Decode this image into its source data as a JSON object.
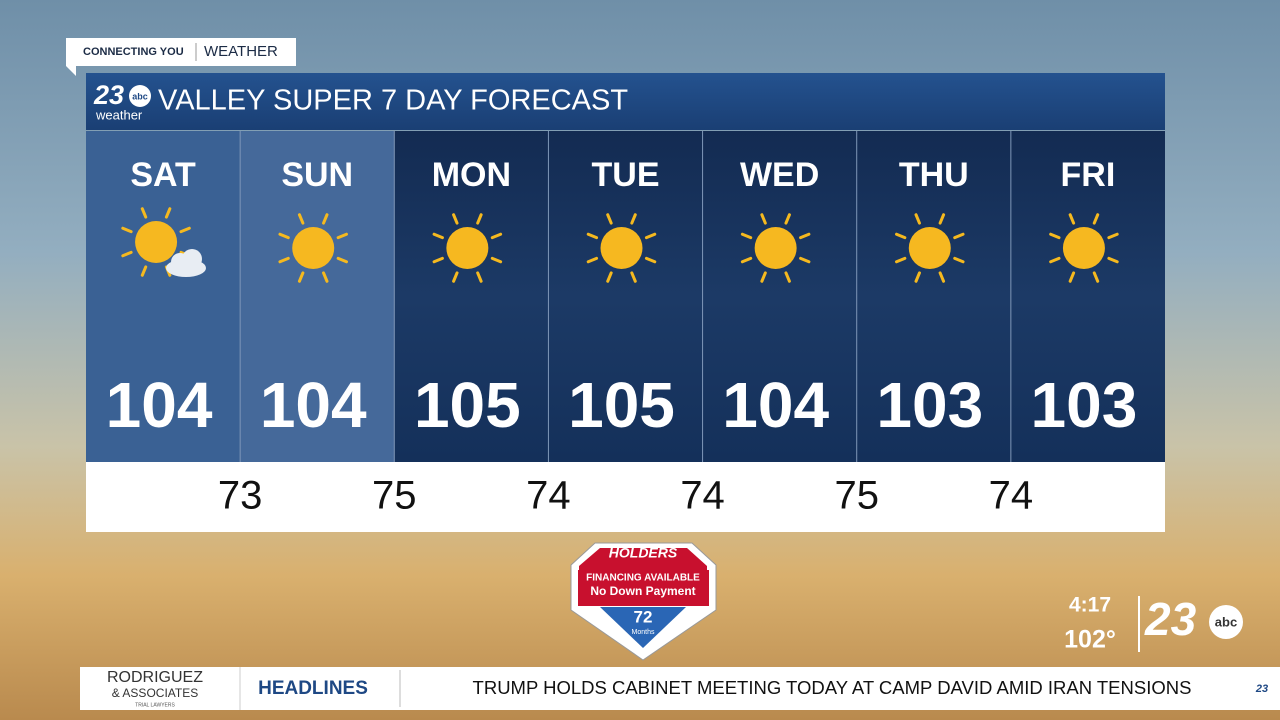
{
  "tag": {
    "brand": "CONNECTING YOU",
    "section": "WEATHER"
  },
  "header": {
    "logo_number": "23",
    "logo_network": "abc",
    "logo_sub": "weather",
    "title": "VALLEY SUPER 7 DAY FORECAST"
  },
  "days": [
    {
      "name": "SAT",
      "high": 104
    },
    {
      "name": "SUN",
      "high": 104
    },
    {
      "name": "MON",
      "high": 105
    },
    {
      "name": "TUE",
      "high": 105
    },
    {
      "name": "WED",
      "high": 104
    },
    {
      "name": "THU",
      "high": 103
    },
    {
      "name": "FRI",
      "high": 103
    }
  ],
  "lows": [
    73,
    75,
    74,
    74,
    75,
    74
  ],
  "ad": {
    "brand": "HOLDERS",
    "line1": "FINANCING AVAILABLE",
    "line2": "No Down Payment",
    "number": "72",
    "unit": "Months"
  },
  "status": {
    "time": "4:17",
    "temperature": "102°",
    "logo_number": "23",
    "logo_network": "abc"
  },
  "ticker": {
    "sponsor_name": "RODRIGUEZ",
    "sponsor_sub": "& ASSOCIATES",
    "sponsor_tag": "TRIAL LAWYERS",
    "label": "HEADLINES",
    "headline": "TRUMP HOLDS CABINET MEETING TODAY AT CAMP DAVID AMID IRAN TENSIONS"
  }
}
